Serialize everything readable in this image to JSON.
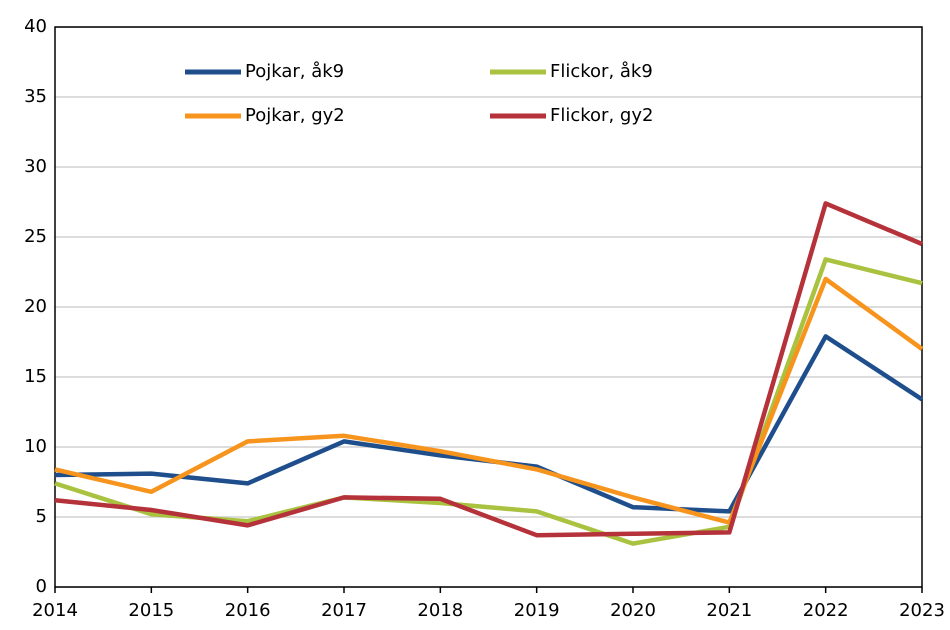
{
  "chart_data": {
    "type": "line",
    "x": [
      2014,
      2015,
      2016,
      2017,
      2018,
      2019,
      2020,
      2021,
      2022,
      2023
    ],
    "xlim": [
      2014,
      2023
    ],
    "xticks": [
      2014,
      2015,
      2016,
      2017,
      2018,
      2019,
      2020,
      2021,
      2022,
      2023
    ],
    "ylim": [
      0,
      40
    ],
    "yticks": [
      0,
      5,
      10,
      15,
      20,
      25,
      30,
      35,
      40
    ],
    "grid": true,
    "series": [
      {
        "name": "Pojkar, åk9",
        "color": "#1f4e8c",
        "values": [
          8.0,
          8.1,
          7.4,
          10.4,
          9.4,
          8.6,
          5.7,
          5.4,
          17.9,
          13.4
        ]
      },
      {
        "name": "Flickor, åk9",
        "color": "#a9c23f",
        "values": [
          7.4,
          5.2,
          4.7,
          6.4,
          6.0,
          5.4,
          3.1,
          4.3,
          23.4,
          21.7
        ]
      },
      {
        "name": "Pojkar, gy2",
        "color": "#f7941d",
        "values": [
          8.4,
          6.8,
          10.4,
          10.8,
          9.7,
          8.4,
          6.4,
          4.6,
          22.0,
          17.0
        ]
      },
      {
        "name": "Flickor, gy2",
        "color": "#b5323a",
        "values": [
          6.2,
          5.5,
          4.4,
          6.4,
          6.3,
          3.7,
          3.8,
          3.9,
          27.4,
          24.5
        ]
      }
    ]
  }
}
